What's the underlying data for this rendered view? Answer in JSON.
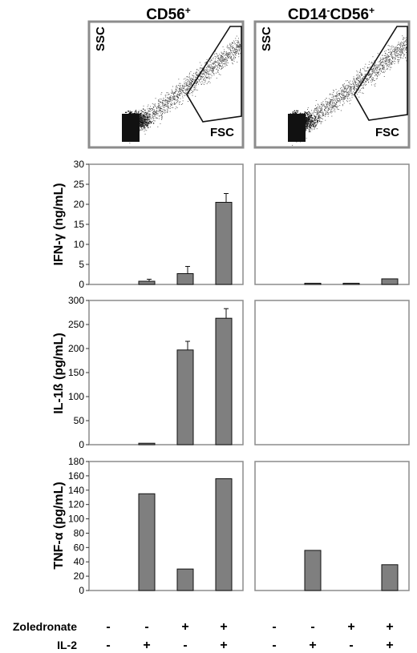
{
  "columns": [
    {
      "title": "CD56",
      "title_sup": "+"
    },
    {
      "title_pre": "CD14",
      "title_pre_sup": "-",
      "title": "CD56",
      "title_sup": "+"
    }
  ],
  "flow_plots": {
    "y_label": "SSC",
    "x_label": "FSC"
  },
  "conditions": {
    "rows": [
      {
        "label": "Zoledronate",
        "signs": [
          "-",
          "-",
          "+",
          "+",
          "-",
          "-",
          "+",
          "+"
        ]
      },
      {
        "label": "IL-2",
        "signs": [
          "-",
          "+",
          "-",
          "+",
          "-",
          "+",
          "-",
          "+"
        ]
      }
    ]
  },
  "chart_data": [
    {
      "type": "bar",
      "panel": "CD56+",
      "ylabel": "IFN-γ (ng/mL)",
      "ylim": [
        0,
        30
      ],
      "yticks": [
        0,
        5,
        10,
        15,
        20,
        25,
        30
      ],
      "categories": [
        "1",
        "2",
        "3",
        "4"
      ],
      "values": [
        0,
        0.8,
        2.7,
        20.5
      ],
      "errors": [
        0,
        0.5,
        1.8,
        2.2
      ],
      "color": "#7f7f7f"
    },
    {
      "type": "bar",
      "panel": "CD14-CD56+",
      "ylabel": "IFN-γ (ng/mL)",
      "ylim": [
        0,
        30
      ],
      "categories": [
        "1",
        "2",
        "3",
        "4"
      ],
      "values": [
        0,
        0.2,
        0.2,
        1.4
      ],
      "errors": [
        0,
        0,
        0,
        0
      ],
      "color": "#7f7f7f"
    },
    {
      "type": "bar",
      "panel": "CD56+",
      "ylabel": "IL-1ß (pg/mL)",
      "ylim": [
        0,
        300
      ],
      "yticks": [
        0,
        50,
        100,
        150,
        200,
        250,
        300
      ],
      "categories": [
        "1",
        "2",
        "3",
        "4"
      ],
      "values": [
        0,
        3,
        197,
        263
      ],
      "errors": [
        0,
        0,
        18,
        20
      ],
      "color": "#7f7f7f"
    },
    {
      "type": "bar",
      "panel": "CD14-CD56+",
      "ylabel": "IL-1ß (pg/mL)",
      "ylim": [
        0,
        300
      ],
      "categories": [
        "1",
        "2",
        "3",
        "4"
      ],
      "values": [
        0,
        0,
        0,
        0
      ],
      "errors": [
        0,
        0,
        0,
        0
      ],
      "color": "#7f7f7f"
    },
    {
      "type": "bar",
      "panel": "CD56+",
      "ylabel": "TNF-α (pg/mL)",
      "ylim": [
        0,
        180
      ],
      "yticks": [
        0,
        20,
        40,
        60,
        80,
        100,
        120,
        140,
        160,
        180
      ],
      "categories": [
        "1",
        "2",
        "3",
        "4"
      ],
      "values": [
        0,
        135,
        30,
        156
      ],
      "errors": [
        0,
        0,
        0,
        0
      ],
      "color": "#7f7f7f"
    },
    {
      "type": "bar",
      "panel": "CD14-CD56+",
      "ylabel": "TNF-α (pg/mL)",
      "ylim": [
        0,
        180
      ],
      "categories": [
        "1",
        "2",
        "3",
        "4"
      ],
      "values": [
        0,
        56,
        0,
        36
      ],
      "errors": [
        0,
        0,
        0,
        0
      ],
      "color": "#7f7f7f"
    }
  ]
}
